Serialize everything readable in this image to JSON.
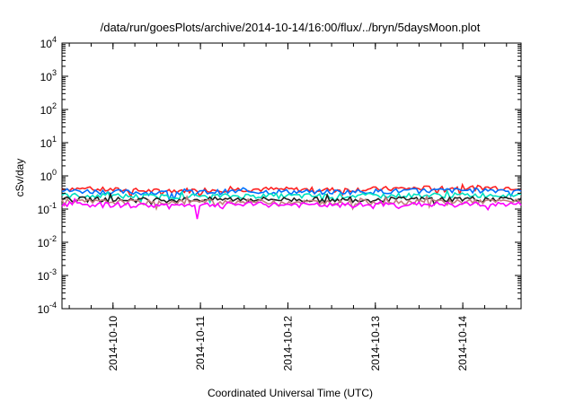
{
  "chart_data": {
    "type": "line",
    "title": "/data/run/goesPlots/archive/2014-10-14/16:00/flux/../bryn/5daysMoon.plot",
    "xlabel": "Coordinated Universal Time (UTC)",
    "ylabel": "cSv/day",
    "yscale": "log",
    "ylim": [
      0.0001,
      10000
    ],
    "y_ticks": [
      {
        "base": "10",
        "exp": "-4",
        "value": 0.0001
      },
      {
        "base": "10",
        "exp": "-3",
        "value": 0.001
      },
      {
        "base": "10",
        "exp": "-2",
        "value": 0.01
      },
      {
        "base": "10",
        "exp": "-1",
        "value": 0.1
      },
      {
        "base": "10",
        "exp": "0",
        "value": 1
      },
      {
        "base": "10",
        "exp": "1",
        "value": 10
      },
      {
        "base": "10",
        "exp": "2",
        "value": 100
      },
      {
        "base": "10",
        "exp": "3",
        "value": 1000
      },
      {
        "base": "10",
        "exp": "4",
        "value": 10000
      }
    ],
    "xlim": [
      "2014-10-09T10:00",
      "2014-10-14T16:00"
    ],
    "x_ticks": [
      "2014-10-10",
      "2014-10-11",
      "2014-10-12",
      "2014-10-13",
      "2014-10-14"
    ],
    "grid": false,
    "series": [
      {
        "color": "#ff2020",
        "approx_values": [
          0.42,
          0.35,
          0.4,
          0.38,
          0.43,
          0.45
        ]
      },
      {
        "color": "#0070ff",
        "approx_values": [
          0.36,
          0.31,
          0.34,
          0.33,
          0.36,
          0.38
        ]
      },
      {
        "color": "#00e0c0",
        "approx_values": [
          0.26,
          0.24,
          0.25,
          0.25,
          0.26,
          0.27
        ]
      },
      {
        "color": "#202020",
        "approx_values": [
          0.2,
          0.19,
          0.2,
          0.19,
          0.2,
          0.21
        ]
      },
      {
        "color": "#c08080",
        "approx_values": [
          0.17,
          0.16,
          0.17,
          0.16,
          0.17,
          0.17
        ]
      },
      {
        "color": "#ff00ff",
        "approx_values": [
          0.14,
          0.13,
          0.14,
          0.13,
          0.14,
          0.14
        ]
      }
    ]
  }
}
